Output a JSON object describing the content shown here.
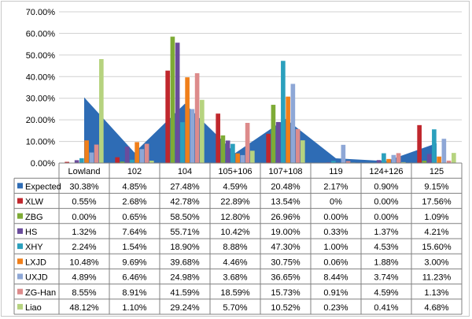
{
  "chart_data": {
    "type": "bar",
    "title": "",
    "xlabel": "",
    "ylabel": "",
    "ylim": [
      0,
      70
    ],
    "y_ticks": [
      "0.00%",
      "10.00%",
      "20.00%",
      "30.00%",
      "40.00%",
      "50.00%",
      "60.00%",
      "70.00%"
    ],
    "categories": [
      "Lowland",
      "102",
      "104",
      "105+106",
      "107+108",
      "119",
      "124+126",
      "125"
    ],
    "grid": true,
    "legend": "data table rows",
    "area_series": {
      "name": "Expected",
      "color": "#2e6cb5",
      "values": [
        30.38,
        4.85,
        27.48,
        4.59,
        20.48,
        2.17,
        0.9,
        9.15
      ],
      "labels": [
        "30.38%",
        "4.85%",
        "27.48%",
        "4.59%",
        "20.48%",
        "2.17%",
        "0.90%",
        "9.15%"
      ]
    },
    "series": [
      {
        "name": "XLW",
        "color": "#c0272d",
        "values": [
          0.55,
          2.68,
          42.78,
          22.89,
          13.54,
          0,
          0.0,
          17.56
        ],
        "labels": [
          "0.55%",
          "2.68%",
          "42.78%",
          "22.89%",
          "13.54%",
          "0%",
          "0.00%",
          "17.56%"
        ]
      },
      {
        "name": "ZBG",
        "color": "#7eab36",
        "values": [
          0.0,
          0.65,
          58.5,
          12.8,
          26.96,
          0.0,
          0.0,
          1.09
        ],
        "labels": [
          "0.00%",
          "0.65%",
          "58.50%",
          "12.80%",
          "26.96%",
          "0.00%",
          "0.00%",
          "1.09%"
        ]
      },
      {
        "name": "HS",
        "color": "#6a4c9c",
        "values": [
          1.32,
          7.64,
          55.71,
          10.42,
          19.0,
          0.33,
          1.37,
          4.21
        ],
        "labels": [
          "1.32%",
          "7.64%",
          "55.71%",
          "10.42%",
          "19.00%",
          "0.33%",
          "1.37%",
          "4.21%"
        ]
      },
      {
        "name": "XHY",
        "color": "#2ba0bd",
        "values": [
          2.24,
          1.54,
          18.9,
          8.88,
          47.3,
          1.0,
          4.53,
          15.6
        ],
        "labels": [
          "2.24%",
          "1.54%",
          "18.90%",
          "8.88%",
          "47.30%",
          "1.00%",
          "4.53%",
          "15.60%"
        ]
      },
      {
        "name": "LXJD",
        "color": "#f07f1a",
        "values": [
          10.48,
          9.69,
          39.68,
          4.46,
          30.75,
          0.06,
          1.88,
          3.0
        ],
        "labels": [
          "10.48%",
          "9.69%",
          "39.68%",
          "4.46%",
          "30.75%",
          "0.06%",
          "1.88%",
          "3.00%"
        ]
      },
      {
        "name": "UXJD",
        "color": "#8ea7d6",
        "values": [
          4.89,
          6.46,
          24.98,
          3.68,
          36.65,
          8.44,
          3.74,
          11.23
        ],
        "labels": [
          "4.89%",
          "6.46%",
          "24.98%",
          "3.68%",
          "36.65%",
          "8.44%",
          "3.74%",
          "11.23%"
        ]
      },
      {
        "name": "ZG-Han",
        "color": "#dd8b8b",
        "values": [
          8.55,
          8.91,
          41.59,
          18.59,
          15.73,
          0.91,
          4.59,
          1.13
        ],
        "labels": [
          "8.55%",
          "8.91%",
          "41.59%",
          "18.59%",
          "15.73%",
          "0.91%",
          "4.59%",
          "1.13%"
        ]
      },
      {
        "name": "Liao",
        "color": "#b6d37f",
        "values": [
          48.12,
          1.1,
          29.24,
          5.7,
          10.52,
          0.23,
          0.41,
          4.68
        ],
        "labels": [
          "48.12%",
          "1.10%",
          "29.24%",
          "5.70%",
          "10.52%",
          "0.23%",
          "0.41%",
          "4.68%"
        ]
      }
    ]
  }
}
